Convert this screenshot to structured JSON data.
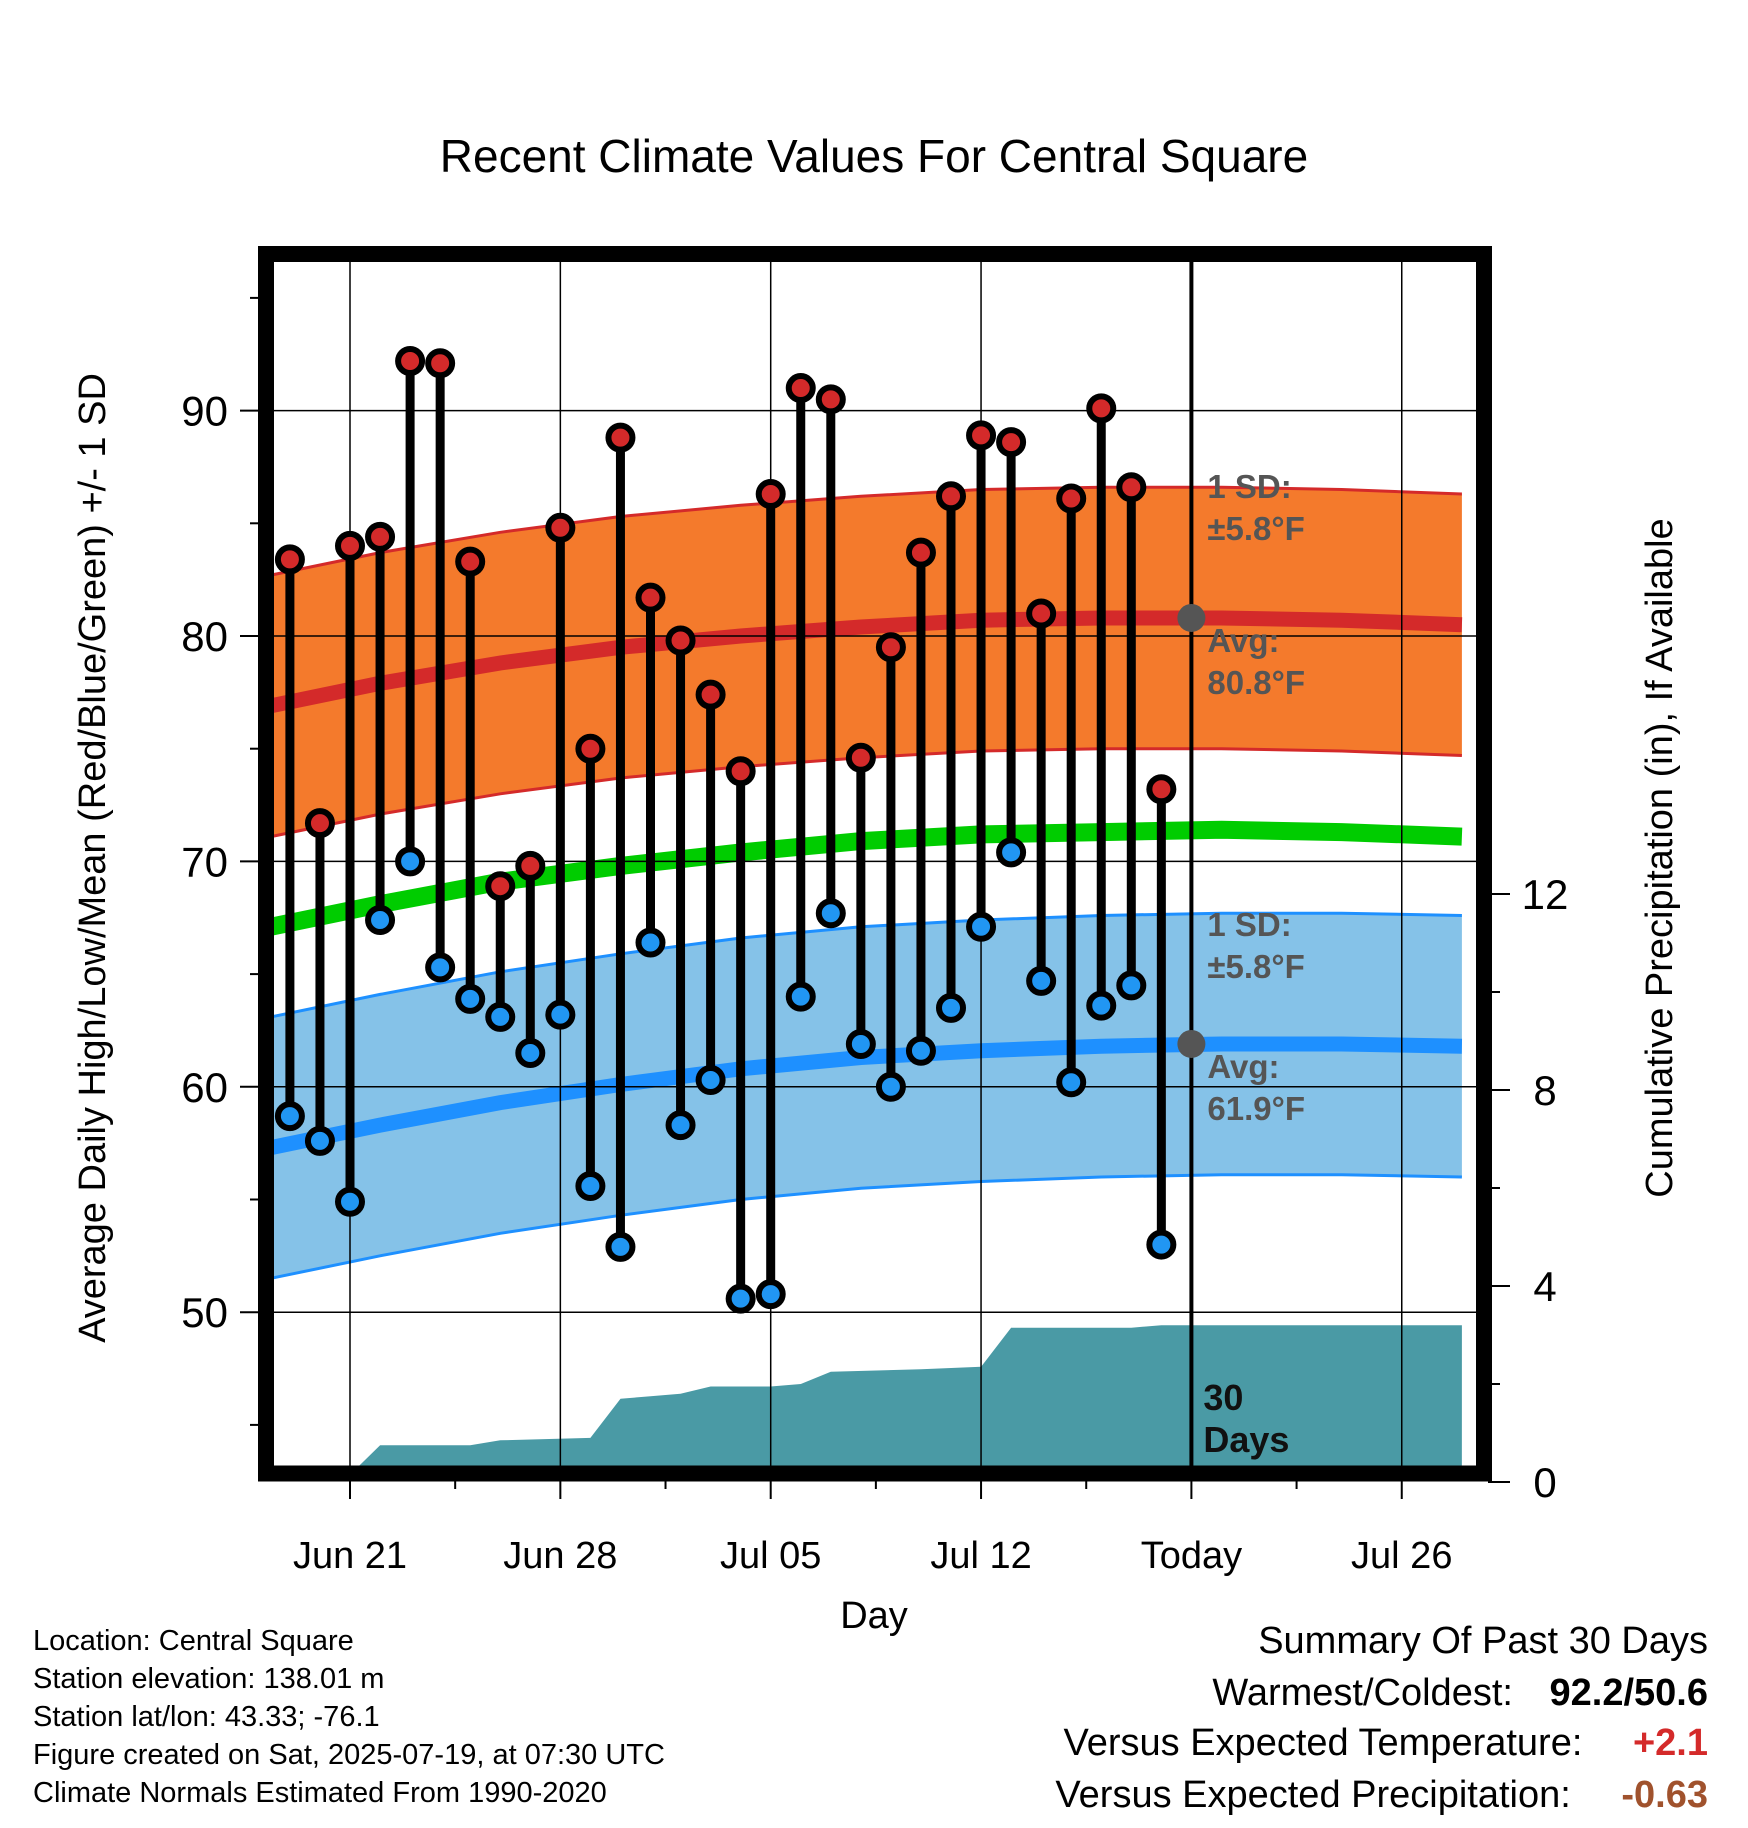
{
  "chart_data": {
    "type": "line",
    "title": "Recent Climate Values For Central Square",
    "xlabel": "Day",
    "ylabel": "Average Daily High/Low/Mean (Red/Blue/Green) +/- 1 SD",
    "y2label": "Cumulative Precipitation (in), If Available",
    "x_ticks": [
      "Jun 21",
      "Jun 28",
      "Jul 05",
      "Jul 12",
      "Today",
      "Jul 26"
    ],
    "y_ticks": [
      50,
      60,
      70,
      80,
      90
    ],
    "y2_ticks": [
      0,
      4,
      8,
      12
    ],
    "ylim": [
      43,
      98
    ],
    "y2lim": [
      0,
      26
    ],
    "grid": true,
    "dates": [
      "Jun 19",
      "Jun 20",
      "Jun 21",
      "Jun 22",
      "Jun 23",
      "Jun 24",
      "Jun 25",
      "Jun 26",
      "Jun 27",
      "Jun 28",
      "Jun 29",
      "Jun 30",
      "Jul 01",
      "Jul 02",
      "Jul 03",
      "Jul 04",
      "Jul 05",
      "Jul 06",
      "Jul 07",
      "Jul 08",
      "Jul 09",
      "Jul 10",
      "Jul 11",
      "Jul 12",
      "Jul 13",
      "Jul 14",
      "Jul 15",
      "Jul 16",
      "Jul 17",
      "Jul 18"
    ],
    "highs": [
      83.4,
      71.7,
      84.0,
      84.4,
      92.2,
      92.1,
      83.3,
      68.9,
      69.8,
      84.8,
      75.0,
      88.8,
      81.7,
      79.8,
      77.4,
      74.0,
      86.3,
      91.0,
      90.5,
      74.6,
      79.5,
      83.7,
      86.2,
      88.9,
      88.6,
      81.0,
      86.1,
      90.1,
      86.6,
      73.2
    ],
    "lows": [
      58.7,
      57.6,
      54.9,
      67.4,
      70.0,
      65.3,
      63.9,
      63.1,
      61.5,
      63.2,
      55.6,
      52.9,
      66.4,
      58.3,
      60.3,
      50.6,
      50.8,
      64.0,
      67.7,
      61.9,
      60.0,
      61.6,
      63.5,
      67.1,
      70.4,
      64.7,
      60.2,
      63.6,
      64.5,
      53.0
    ],
    "normal_high": {
      "x": [
        "Jun 18",
        "Jun 22",
        "Jun 26",
        "Jun 30",
        "Jul 04",
        "Jul 08",
        "Jul 12",
        "Jul 16",
        "Jul 20",
        "Jul 24",
        "Jul 28"
      ],
      "mean": [
        76.8,
        77.9,
        78.8,
        79.5,
        80.0,
        80.4,
        80.7,
        80.8,
        80.8,
        80.7,
        80.5
      ],
      "sd": 5.8
    },
    "normal_low": {
      "x": [
        "Jun 18",
        "Jun 22",
        "Jun 26",
        "Jun 30",
        "Jul 04",
        "Jul 08",
        "Jul 12",
        "Jul 16",
        "Jul 20",
        "Jul 24",
        "Jul 28"
      ],
      "mean": [
        57.2,
        58.3,
        59.3,
        60.1,
        60.8,
        61.3,
        61.6,
        61.8,
        61.9,
        61.9,
        61.8
      ],
      "sd": 5.8
    },
    "normal_mean": {
      "x": [
        "Jun 18",
        "Jun 22",
        "Jun 26",
        "Jun 30",
        "Jul 04",
        "Jul 08",
        "Jul 12",
        "Jul 16",
        "Jul 20",
        "Jul 24",
        "Jul 28"
      ],
      "values": [
        67.0,
        68.1,
        69.1,
        69.8,
        70.4,
        70.9,
        71.2,
        71.3,
        71.4,
        71.3,
        71.1
      ]
    },
    "precip_cumulative": {
      "x": [
        "Jun 18",
        "Jun 20",
        "Jun 21",
        "Jun 22",
        "Jun 25",
        "Jun 26",
        "Jun 29",
        "Jun 30",
        "Jul 01",
        "Jul 02",
        "Jul 03",
        "Jul 05",
        "Jul 06",
        "Jul 07",
        "Jul 10",
        "Jul 12",
        "Jul 13",
        "Jul 17",
        "Jul 18",
        "Jul 28"
      ],
      "values": [
        0.0,
        0.1,
        0.15,
        0.75,
        0.75,
        0.85,
        0.9,
        1.7,
        1.75,
        1.8,
        1.95,
        1.95,
        2.0,
        2.25,
        2.3,
        2.35,
        3.15,
        3.15,
        3.2,
        3.2
      ]
    },
    "annotations": {
      "high_sd": "1 SD:",
      "high_sd_value": "±5.8°F",
      "high_avg": "Avg:",
      "high_avg_value": "80.8°F",
      "low_sd": "1 SD:",
      "low_sd_value": "±5.8°F",
      "low_avg": "Avg:",
      "low_avg_value": "61.9°F",
      "days_line1": "30",
      "days_line2": "Days"
    },
    "high_avg_marker": 80.8,
    "low_avg_marker": 61.9,
    "colors": {
      "high_band": "#f47a2c",
      "high_line": "#d42a2a",
      "low_band": "#85c2e8",
      "low_line": "#1e90ff",
      "mean_line": "#00cc00",
      "precip": "#4a9aa5",
      "high_dot": "#d42a2a",
      "low_dot": "#2196f3",
      "annot": "#555555"
    }
  },
  "info": {
    "location": "Location: Central Square",
    "elevation": "Station elevation: 138.01 m",
    "latlon": "Station lat/lon: 43.33; -76.1",
    "created": "Figure created on Sat, 2025-07-19, at 07:30 UTC",
    "normals": "Climate Normals Estimated From 1990-2020"
  },
  "summary": {
    "title": "Summary Of Past 30 Days",
    "warm_label": "Warmest/Coldest:",
    "warm_value": "92.2/50.6",
    "temp_label": "Versus Expected Temperature:",
    "temp_value": "+2.1",
    "temp_color": "#d42a2a",
    "precip_label": "Versus Expected Precipitation:",
    "precip_value": "-0.63",
    "precip_color": "#a0522d"
  }
}
